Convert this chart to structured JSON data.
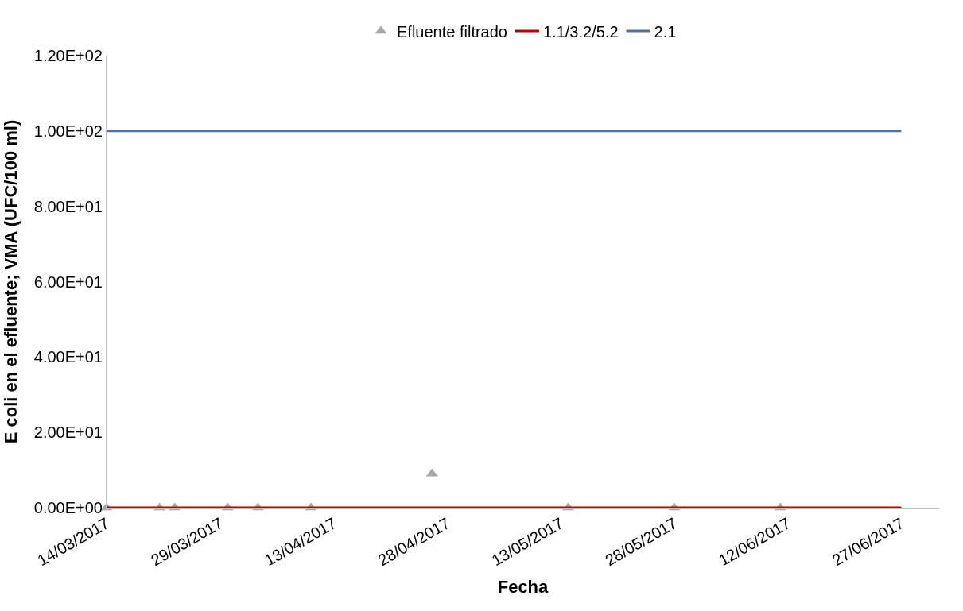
{
  "chart_data": {
    "type": "line",
    "xlabel": "Fecha",
    "ylabel": "E coli en el efluente; VMA (UFC/100 ml)",
    "xlim": [
      "2017-03-14",
      "2017-07-02"
    ],
    "xticks": [
      {
        "value": "2017-03-14",
        "label": "14/03/2017"
      },
      {
        "value": "2017-03-29",
        "label": "29/03/2017"
      },
      {
        "value": "2017-04-13",
        "label": "13/04/2017"
      },
      {
        "value": "2017-04-28",
        "label": "28/04/2017"
      },
      {
        "value": "2017-05-13",
        "label": "13/05/2017"
      },
      {
        "value": "2017-05-28",
        "label": "28/05/2017"
      },
      {
        "value": "2017-06-12",
        "label": "12/06/2017"
      },
      {
        "value": "2017-06-27",
        "label": "27/06/2017"
      }
    ],
    "ylim": [
      0,
      120
    ],
    "yticks": [
      {
        "value": 0,
        "label": "0.00E+00"
      },
      {
        "value": 20,
        "label": "2.00E+01"
      },
      {
        "value": 40,
        "label": "4.00E+01"
      },
      {
        "value": 60,
        "label": "6.00E+01"
      },
      {
        "value": 80,
        "label": "8.00E+01"
      },
      {
        "value": 100,
        "label": "1.00E+02"
      },
      {
        "value": 120,
        "label": "1.20E+02"
      }
    ],
    "legend": "top",
    "series": [
      {
        "name": "Efluente filtrado",
        "type": "scatter",
        "marker": "triangle",
        "color": "#a6a6a6",
        "x": [
          "2017-03-14",
          "2017-03-21",
          "2017-03-23",
          "2017-03-30",
          "2017-04-03",
          "2017-04-10",
          "2017-04-26",
          "2017-05-14",
          "2017-05-28",
          "2017-06-11"
        ],
        "values": [
          0,
          0,
          0,
          0,
          0,
          0,
          9,
          0,
          0,
          0
        ]
      },
      {
        "name": "1.1/3.2/5.2",
        "color": "#c00000",
        "x": [
          "2017-03-14",
          "2017-06-27"
        ],
        "values": [
          0,
          0
        ]
      },
      {
        "name": "2.1",
        "color": "#4f72a6",
        "x": [
          "2017-03-14",
          "2017-06-27"
        ],
        "values": [
          100,
          100
        ]
      }
    ]
  }
}
